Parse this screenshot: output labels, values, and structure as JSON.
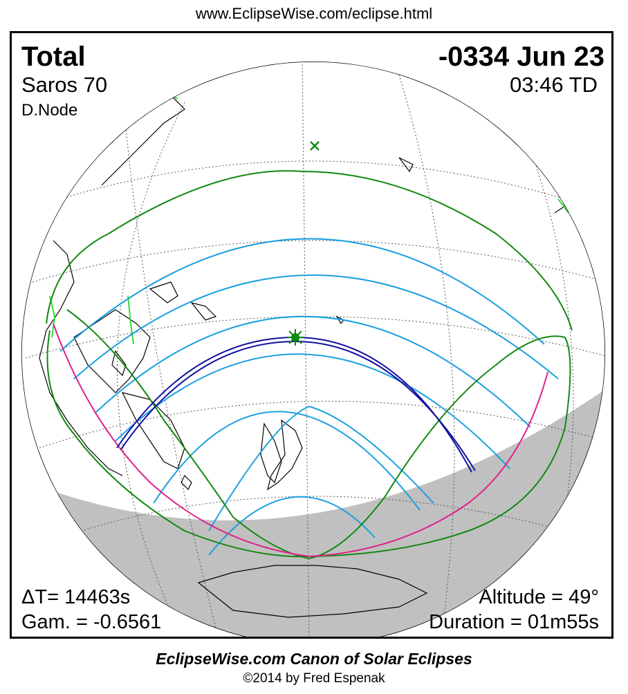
{
  "header": {
    "url": "www.EclipseWise.com/eclipse.html"
  },
  "eclipse": {
    "type": "Total",
    "date": "-0334 Jun 23",
    "saros": "Saros  70",
    "time": "03:46 TD",
    "node": "D.Node",
    "delta_t": "ΔT=  14463s",
    "gamma": "Gam. = -0.6561",
    "altitude": "Altitude = 49°",
    "duration": "Duration = 01m55s"
  },
  "footer": {
    "canon": "EclipseWise.com Canon of Solar Eclipses",
    "copyright": "©2014 by Fred Espenak"
  },
  "colors": {
    "path_of_totality": "#1010a0",
    "penumbral_limits": "#118811",
    "magnitude_contours": "#1aa0e0",
    "sunrise_sunset_curve": "#e0208a",
    "night_side": "#c0c0c0",
    "coastlines": "#000000",
    "ice": "#33dd33"
  },
  "icons": {
    "greatest_eclipse": "star-burst-icon",
    "sub_solar_point": "x-cross-icon"
  }
}
